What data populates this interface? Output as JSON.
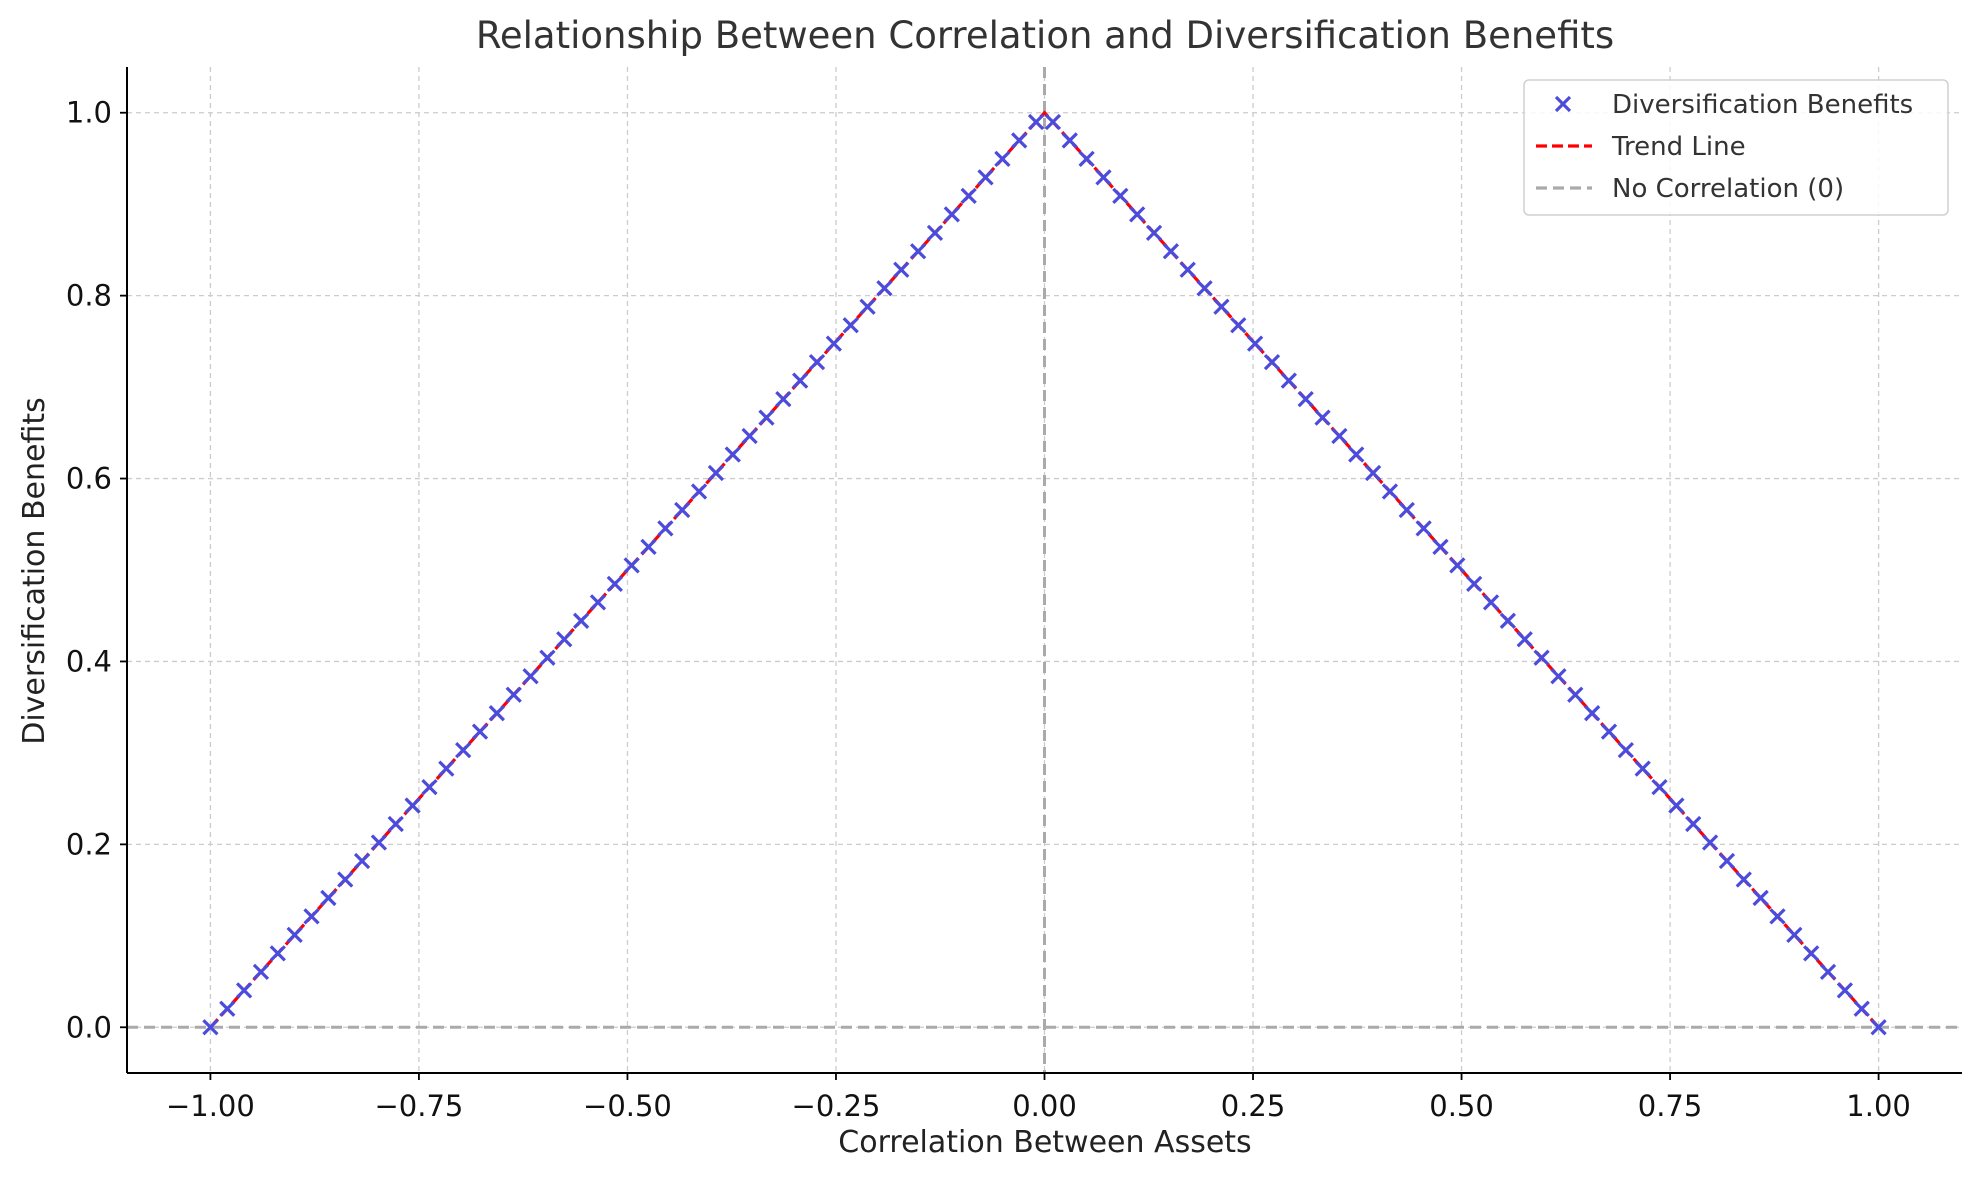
{
  "chart_data": {
    "type": "scatter",
    "title": "Relationship Between Correlation and Diversification Benefits",
    "xlabel": "Correlation Between Assets",
    "ylabel": "Diversification Benefits",
    "xlim": [
      -1.1,
      1.1
    ],
    "ylim": [
      -0.05,
      1.05
    ],
    "xticks": [
      -1.0,
      -0.75,
      -0.5,
      -0.25,
      0.0,
      0.25,
      0.5,
      0.75,
      1.0
    ],
    "xtick_labels": [
      "−1.00",
      "−0.75",
      "−0.50",
      "−0.25",
      "0.00",
      "0.25",
      "0.50",
      "0.75",
      "1.00"
    ],
    "yticks": [
      0.0,
      0.2,
      0.4,
      0.6,
      0.8,
      1.0
    ],
    "ytick_labels": [
      "0.0",
      "0.2",
      "0.4",
      "0.6",
      "0.8",
      "1.0"
    ],
    "grid": true,
    "legend_position": "top-right",
    "series": [
      {
        "name": "Diversification Benefits",
        "kind": "scatter",
        "marker": "x",
        "color": "#4b4bdc",
        "sampling": {
          "x_start": -1.0,
          "x_end": 1.0,
          "count": 100
        },
        "formula": "y = 1 - |x|"
      },
      {
        "name": "Trend Line",
        "kind": "line",
        "style": "dashed",
        "color": "#ff0000",
        "x": [
          -1.0,
          0.0,
          1.0
        ],
        "y": [
          0.0,
          1.0,
          0.0
        ]
      },
      {
        "name": "No Correlation (0)",
        "kind": "reference-line",
        "style": "dashed",
        "color": "#aaaaaa",
        "vertical_at_x": 0.0,
        "horizontal_at_y": 0.0
      }
    ]
  }
}
